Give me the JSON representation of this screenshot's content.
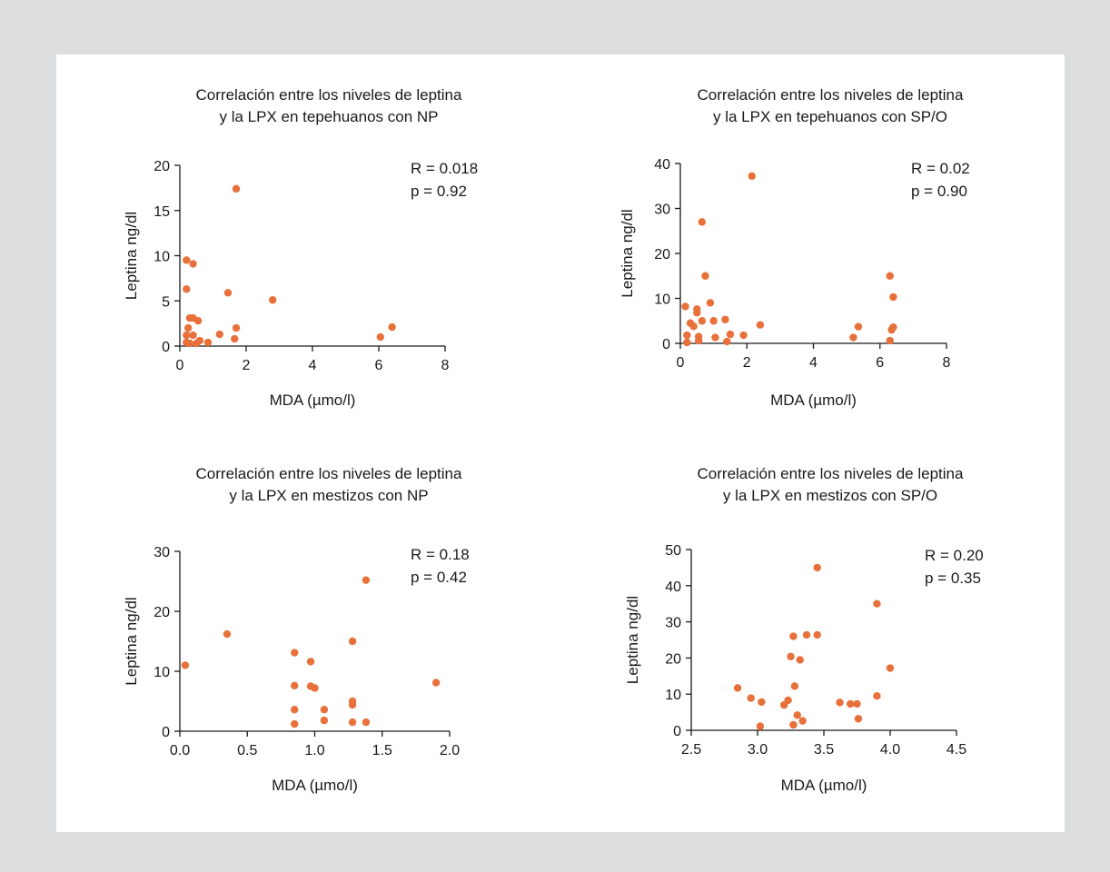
{
  "colors": {
    "page_background": "#dcdddf",
    "panel_background": "#ffffff",
    "point": "#e8703a",
    "axis": "#1a1a1a"
  },
  "chart_data": [
    {
      "type": "scatter",
      "title_lines": [
        "Correlación entre los niveles de leptina",
        "y la LPX en tepehuanos con NP"
      ],
      "xlabel": "MDA (µmo/l)",
      "ylabel": "Leptina ng/dl",
      "xlim": [
        0,
        8
      ],
      "ylim": [
        0,
        20
      ],
      "xticks": [
        0,
        2,
        4,
        6,
        8
      ],
      "yticks": [
        0,
        5,
        10,
        15,
        20
      ],
      "xtick_labels": [
        "0",
        "2",
        "4",
        "6",
        "8"
      ],
      "ytick_labels": [
        "0",
        "5",
        "10",
        "15",
        "20"
      ],
      "annotation": [
        "R = 0.018",
        "p = 0.92"
      ],
      "points": [
        [
          0.2,
          9.5
        ],
        [
          0.2,
          6.3
        ],
        [
          0.4,
          9.1
        ],
        [
          1.45,
          5.9
        ],
        [
          1.7,
          17.4
        ],
        [
          2.8,
          5.1
        ],
        [
          0.25,
          2.0
        ],
        [
          0.3,
          3.1
        ],
        [
          0.4,
          3.1
        ],
        [
          0.55,
          2.8
        ],
        [
          1.7,
          2.0
        ],
        [
          6.4,
          2.1
        ],
        [
          0.2,
          1.2
        ],
        [
          0.4,
          1.2
        ],
        [
          1.2,
          1.3
        ],
        [
          6.05,
          1.0
        ],
        [
          1.65,
          0.8
        ],
        [
          0.6,
          0.6
        ],
        [
          0.2,
          0.4
        ],
        [
          0.3,
          0.3
        ],
        [
          0.5,
          0.3
        ],
        [
          0.85,
          0.4
        ]
      ]
    },
    {
      "type": "scatter",
      "title_lines": [
        "Correlación entre los niveles de leptina",
        "y la LPX en tepehuanos con SP/O"
      ],
      "xlabel": "MDA (µmo/l)",
      "ylabel": "Leptina ng/dl",
      "xlim": [
        0,
        8
      ],
      "ylim": [
        0,
        40
      ],
      "xticks": [
        0,
        2,
        4,
        6,
        8
      ],
      "yticks": [
        0,
        10,
        20,
        30,
        40
      ],
      "xtick_labels": [
        "0",
        "2",
        "4",
        "6",
        "8"
      ],
      "ytick_labels": [
        "0",
        "10",
        "20",
        "30",
        "40"
      ],
      "annotation": [
        "R = 0.02",
        "p = 0.90"
      ],
      "points": [
        [
          2.15,
          37.2
        ],
        [
          0.65,
          27.0
        ],
        [
          0.75,
          15.0
        ],
        [
          6.3,
          15.0
        ],
        [
          6.4,
          10.3
        ],
        [
          0.15,
          8.2
        ],
        [
          0.9,
          9.0
        ],
        [
          0.5,
          7.6
        ],
        [
          0.5,
          6.8
        ],
        [
          0.65,
          5.0
        ],
        [
          1.0,
          5.0
        ],
        [
          1.35,
          5.3
        ],
        [
          0.3,
          4.5
        ],
        [
          0.4,
          3.8
        ],
        [
          2.4,
          4.1
        ],
        [
          5.35,
          3.7
        ],
        [
          6.4,
          3.6
        ],
        [
          6.35,
          3.0
        ],
        [
          1.5,
          2.0
        ],
        [
          1.9,
          1.8
        ],
        [
          0.2,
          1.8
        ],
        [
          0.55,
          1.5
        ],
        [
          1.05,
          1.3
        ],
        [
          5.2,
          1.3
        ],
        [
          0.55,
          0.6
        ],
        [
          1.4,
          0.4
        ],
        [
          6.3,
          0.6
        ],
        [
          0.2,
          0.2
        ]
      ]
    },
    {
      "type": "scatter",
      "title_lines": [
        "Correlación entre los niveles de leptina",
        "y la LPX en mestizos con NP"
      ],
      "xlabel": "MDA (µmo/l)",
      "ylabel": "Leptina ng/dl",
      "xlim": [
        0,
        2
      ],
      "ylim": [
        0,
        30
      ],
      "xticks": [
        0,
        0.5,
        1,
        1.5,
        2
      ],
      "yticks": [
        0,
        10,
        20,
        30
      ],
      "xtick_labels": [
        "0.0",
        "0.5",
        "1.0",
        "1.5",
        "2.0"
      ],
      "ytick_labels": [
        "0",
        "10",
        "20",
        "30"
      ],
      "annotation": [
        "R = 0.18",
        "p = 0.42"
      ],
      "points": [
        [
          1.38,
          25.2
        ],
        [
          0.35,
          16.2
        ],
        [
          1.28,
          15.0
        ],
        [
          0.85,
          13.1
        ],
        [
          0.97,
          11.6
        ],
        [
          0.04,
          11.0
        ],
        [
          1.9,
          8.1
        ],
        [
          0.85,
          7.6
        ],
        [
          0.97,
          7.5
        ],
        [
          1.0,
          7.2
        ],
        [
          1.28,
          5.0
        ],
        [
          1.28,
          4.4
        ],
        [
          0.85,
          3.6
        ],
        [
          1.07,
          3.6
        ],
        [
          1.07,
          1.8
        ],
        [
          1.28,
          1.5
        ],
        [
          1.38,
          1.5
        ],
        [
          0.85,
          1.2
        ]
      ]
    },
    {
      "type": "scatter",
      "title_lines": [
        "Correlación entre los niveles de leptina",
        "y la LPX en mestizos con SP/O"
      ],
      "xlabel": "MDA (µmo/l)",
      "ylabel": "Leptina ng/dl",
      "xlim": [
        2.5,
        4.5
      ],
      "ylim": [
        0,
        50
      ],
      "xticks": [
        2.5,
        3,
        3.5,
        4,
        4.5
      ],
      "yticks": [
        0,
        10,
        20,
        30,
        40,
        50
      ],
      "xtick_labels": [
        "2.5",
        "3.0",
        "3.5",
        "4.0",
        "4.5"
      ],
      "ytick_labels": [
        "0",
        "10",
        "20",
        "30",
        "40",
        "50"
      ],
      "annotation": [
        "R = 0.20",
        "p = 0.35"
      ],
      "points": [
        [
          3.45,
          45.0
        ],
        [
          3.9,
          35.0
        ],
        [
          3.27,
          26.0
        ],
        [
          3.37,
          26.4
        ],
        [
          3.45,
          26.4
        ],
        [
          3.25,
          20.4
        ],
        [
          3.32,
          19.5
        ],
        [
          4.0,
          17.2
        ],
        [
          3.28,
          12.2
        ],
        [
          2.85,
          11.7
        ],
        [
          3.9,
          9.5
        ],
        [
          2.95,
          8.9
        ],
        [
          3.23,
          8.3
        ],
        [
          3.03,
          7.8
        ],
        [
          3.2,
          7.0
        ],
        [
          3.62,
          7.7
        ],
        [
          3.7,
          7.3
        ],
        [
          3.75,
          7.3
        ],
        [
          3.3,
          4.2
        ],
        [
          3.76,
          3.2
        ],
        [
          3.34,
          2.6
        ],
        [
          3.27,
          1.5
        ],
        [
          3.02,
          1.1
        ]
      ]
    }
  ]
}
